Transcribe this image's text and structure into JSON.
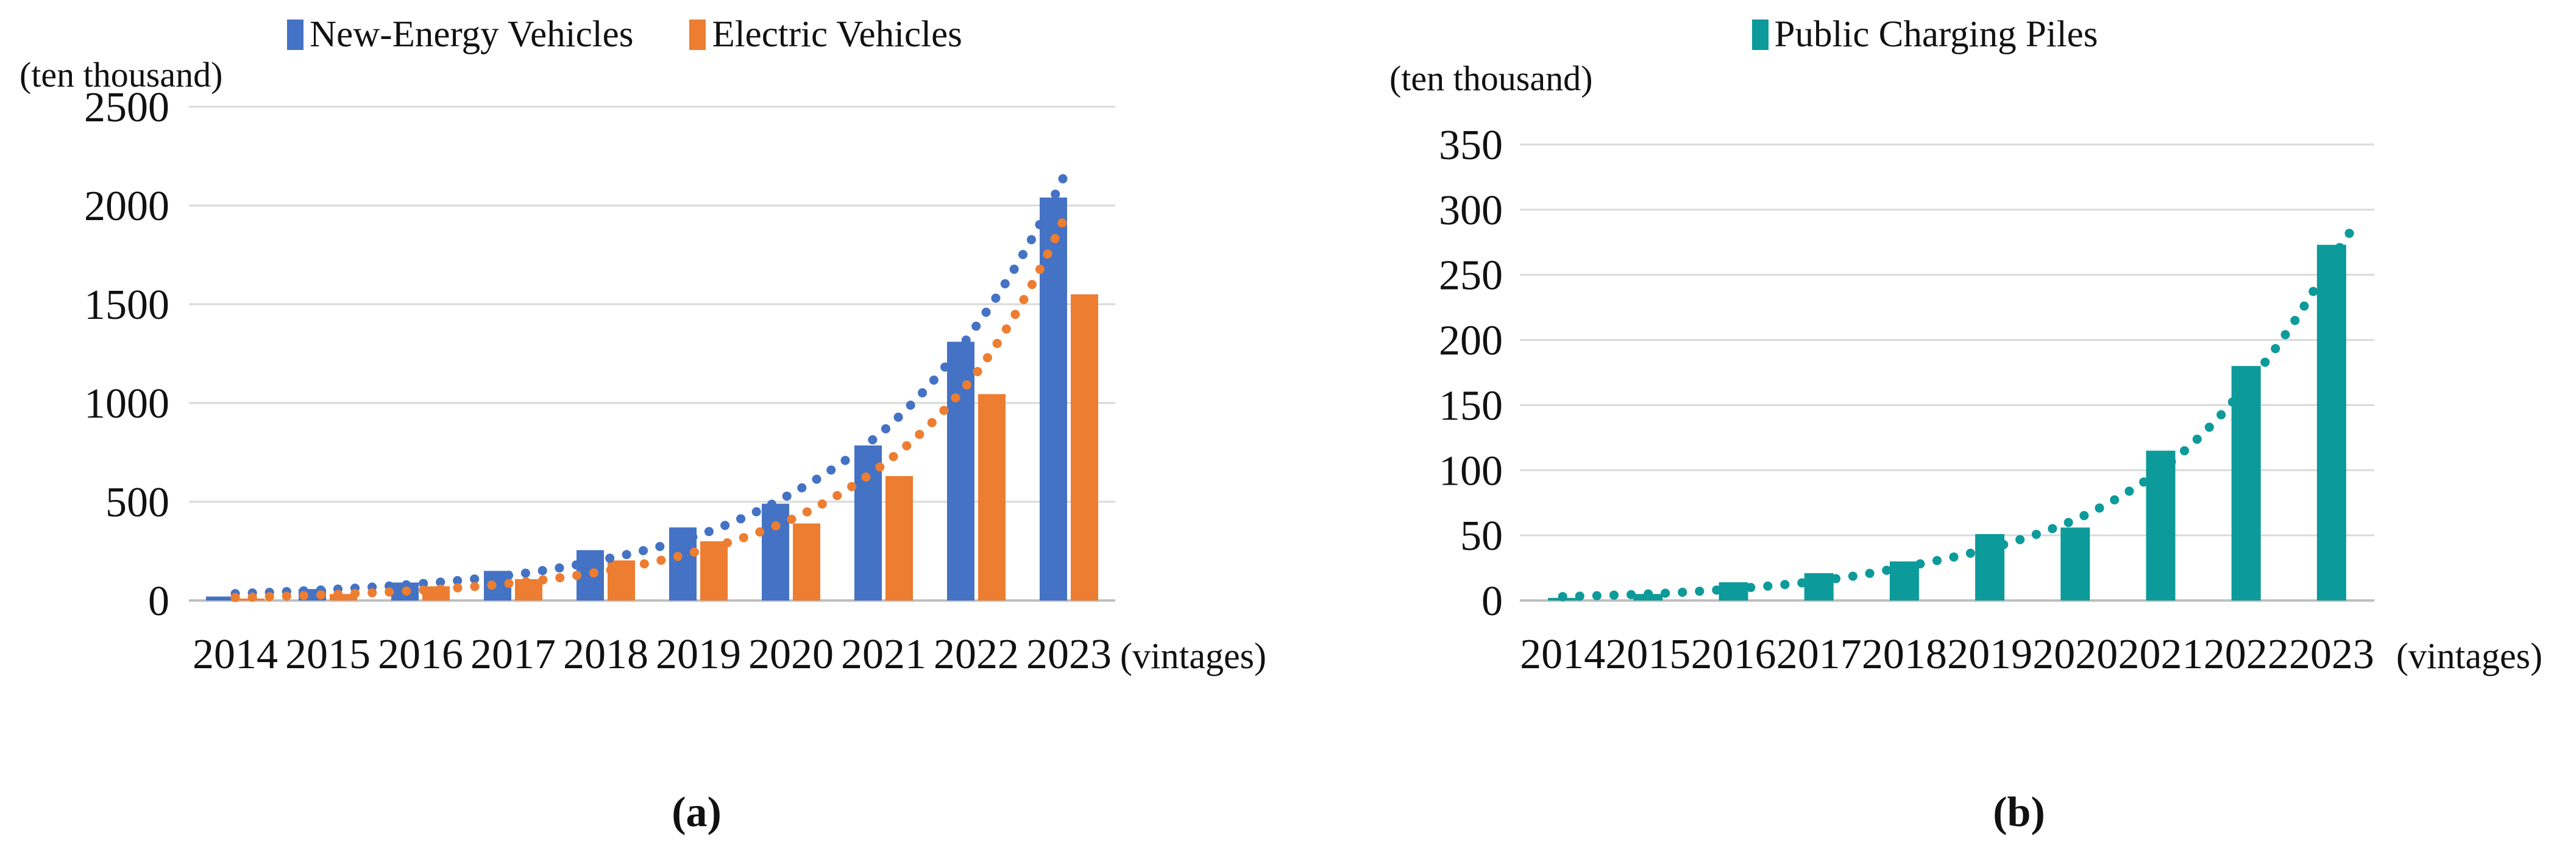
{
  "figure": {
    "background": "#ffffff",
    "grid_color": "#D9D9D9",
    "axis_color": "#BFBFBF",
    "text_color": "#111111"
  },
  "chart_data": [
    {
      "type": "bar",
      "panel_caption": "(a)",
      "unit_label": "(ten thousand)",
      "x_axis_suffix": "(vintages)",
      "legend_position": "top",
      "grid": true,
      "categories": [
        "2014",
        "2015",
        "2016",
        "2017",
        "2018",
        "2019",
        "2020",
        "2021",
        "2022",
        "2023"
      ],
      "ylim": [
        0,
        2500
      ],
      "yticks": [
        0,
        500,
        1000,
        1500,
        2000,
        2500
      ],
      "series": [
        {
          "name": "New-Energy Vehicles",
          "color": "#4472C4",
          "values": [
            20,
            58,
            91,
            150,
            255,
            370,
            490,
            785,
            1310,
            2040
          ],
          "trendline": {
            "style": "dotted",
            "points": [
              [
                0,
                35
              ],
              [
                1,
                55
              ],
              [
                2,
                85
              ],
              [
                3,
                130
              ],
              [
                4,
                210
              ],
              [
                5,
                330
              ],
              [
                6,
                540
              ],
              [
                7,
                860
              ],
              [
                8,
                1390
              ],
              [
                9,
                2200
              ]
            ]
          }
        },
        {
          "name": "Electric Vehicles",
          "color": "#ED7D31",
          "values": [
            10,
            33,
            72,
            108,
            203,
            300,
            390,
            630,
            1045,
            1550
          ],
          "trendline": {
            "style": "dotted",
            "points": [
              [
                0,
                15
              ],
              [
                1,
                30
              ],
              [
                2,
                52
              ],
              [
                3,
                88
              ],
              [
                4,
                150
              ],
              [
                5,
                250
              ],
              [
                6,
                410
              ],
              [
                7,
                690
              ],
              [
                8,
                1150
              ],
              [
                9,
                1990
              ]
            ]
          }
        }
      ]
    },
    {
      "type": "bar",
      "panel_caption": "(b)",
      "unit_label": "(ten thousand)",
      "x_axis_suffix": "(vintages)",
      "legend_position": "top",
      "grid": true,
      "categories": [
        "2014",
        "2015",
        "2016",
        "2017",
        "2018",
        "2019",
        "2020",
        "2021",
        "2022",
        "2023"
      ],
      "ylim": [
        0,
        350
      ],
      "yticks": [
        0,
        50,
        100,
        150,
        200,
        250,
        300,
        350
      ],
      "series": [
        {
          "name": "Public Charging Piles",
          "color": "#0C9A9A",
          "values": [
            2,
            5,
            14,
            21,
            30,
            51,
            56,
            115,
            180,
            273
          ],
          "trendline": {
            "style": "dotted",
            "points": [
              [
                0,
                3
              ],
              [
                1,
                5
              ],
              [
                2,
                9
              ],
              [
                3,
                15
              ],
              [
                4,
                26
              ],
              [
                5,
                40
              ],
              [
                6,
                62
              ],
              [
                7,
                100
              ],
              [
                8,
                165
              ],
              [
                9,
                262
              ],
              [
                9.3,
                291
              ]
            ]
          }
        }
      ]
    }
  ]
}
